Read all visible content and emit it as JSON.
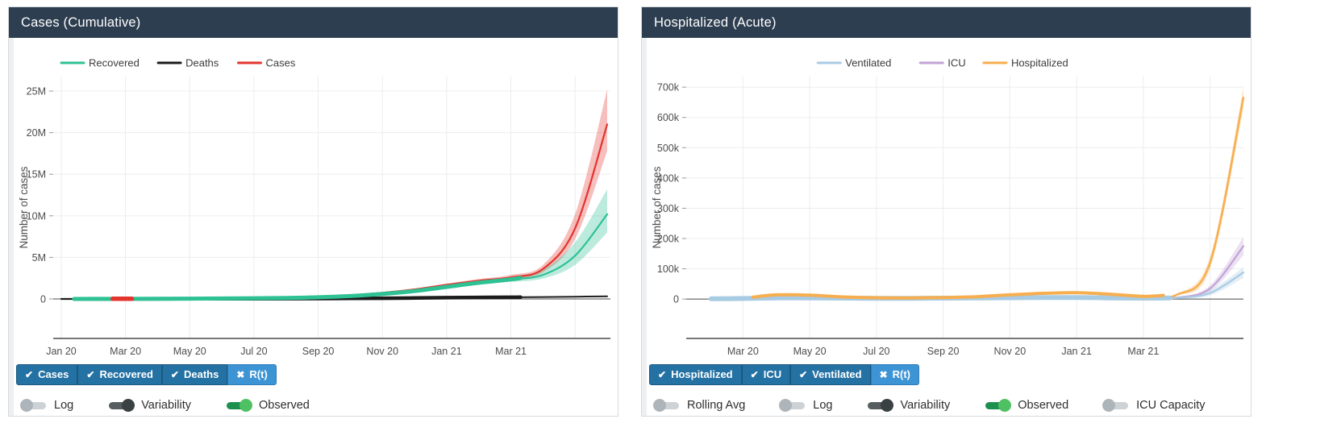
{
  "icons": {
    "checked": "✔",
    "unchecked": "✖"
  },
  "colors": {
    "header_bg": "#2d3e50",
    "button_on": "#2471a3",
    "button_off": "#3d94d4",
    "cases": "#e3342e",
    "recovered": "#2ec194",
    "deaths": "#1c1c1c",
    "ventilated": "#a8cbe4",
    "icu": "#c2a3d6",
    "hospitalized": "#f7ae4f"
  },
  "panels": [
    {
      "title": "Cases (Cumulative)",
      "toggle_buttons": [
        {
          "label": "Cases",
          "checked": true
        },
        {
          "label": "Recovered",
          "checked": true
        },
        {
          "label": "Deaths",
          "checked": true
        },
        {
          "label": "R(t)",
          "checked": false
        }
      ],
      "switches": [
        {
          "label": "Log",
          "on": false,
          "style": "gray"
        },
        {
          "label": "Variability",
          "on": true,
          "style": "dark"
        },
        {
          "label": "Observed",
          "on": true,
          "style": "green"
        }
      ]
    },
    {
      "title": "Hospitalized (Acute)",
      "toggle_buttons": [
        {
          "label": "Hospitalized",
          "checked": true
        },
        {
          "label": "ICU",
          "checked": true
        },
        {
          "label": "Ventilated",
          "checked": true
        },
        {
          "label": "R(t)",
          "checked": false
        }
      ],
      "switches": [
        {
          "label": "Rolling Avg",
          "on": false,
          "style": "gray"
        },
        {
          "label": "Log",
          "on": false,
          "style": "gray"
        },
        {
          "label": "Variability",
          "on": true,
          "style": "dark"
        },
        {
          "label": "Observed",
          "on": true,
          "style": "green"
        },
        {
          "label": "ICU Capacity",
          "on": false,
          "style": "gray"
        }
      ]
    }
  ],
  "chart_data": [
    {
      "type": "line",
      "title": "Cases (Cumulative)",
      "xlabel": "",
      "ylabel": "Number of cases",
      "x_unit": "months since Jan 2020",
      "y_unit": "millions of cases",
      "grid": true,
      "legend_pos": "top-left",
      "xlim": [
        -0.25,
        17.1
      ],
      "ylim": [
        -4.75,
        26.75
      ],
      "xticks": [
        {
          "v": 0,
          "label": "Jan 20"
        },
        {
          "v": 2,
          "label": "Mar 20"
        },
        {
          "v": 4,
          "label": "May 20"
        },
        {
          "v": 6,
          "label": "Jul 20"
        },
        {
          "v": 8,
          "label": "Sep 20"
        },
        {
          "v": 10,
          "label": "Nov 20"
        },
        {
          "v": 12,
          "label": "Jan 21"
        },
        {
          "v": 14,
          "label": "Mar 21"
        },
        {
          "v": 16,
          "label": ""
        }
      ],
      "yticks": [
        {
          "v": 0,
          "label": "0"
        },
        {
          "v": 5,
          "label": "5M"
        },
        {
          "v": 10,
          "label": "10M"
        },
        {
          "v": 15,
          "label": "15M"
        },
        {
          "v": 20,
          "label": "20M"
        },
        {
          "v": 25,
          "label": "25M"
        }
      ],
      "x": [
        0,
        1,
        2,
        3,
        4,
        5,
        6,
        7,
        8,
        9,
        10,
        11,
        12,
        13,
        14,
        15,
        16,
        17
      ],
      "series": [
        {
          "name": "Cases",
          "color": "#e3342e",
          "width": 2.2,
          "y": [
            0,
            0.01,
            0.02,
            0.03,
            0.05,
            0.07,
            0.1,
            0.15,
            0.25,
            0.45,
            0.75,
            1.15,
            1.7,
            2.2,
            2.6,
            3.6,
            8.5,
            21.0
          ],
          "band_high": [
            0,
            0.01,
            0.02,
            0.03,
            0.05,
            0.07,
            0.1,
            0.15,
            0.27,
            0.49,
            0.82,
            1.26,
            1.85,
            2.4,
            2.9,
            4.1,
            10.2,
            25.2
          ],
          "band_low": [
            0,
            0.01,
            0.02,
            0.03,
            0.05,
            0.07,
            0.1,
            0.15,
            0.23,
            0.41,
            0.68,
            1.05,
            1.55,
            2.0,
            2.35,
            3.2,
            7.2,
            17.8
          ],
          "thick_range": [
            1.6,
            2.2
          ],
          "thick_width": 5.5
        },
        {
          "name": "Recovered",
          "color": "#2ec194",
          "width": 2.2,
          "y": [
            0,
            0.005,
            0.01,
            0.02,
            0.04,
            0.06,
            0.09,
            0.13,
            0.2,
            0.35,
            0.6,
            0.95,
            1.45,
            1.95,
            2.35,
            2.9,
            5.2,
            10.2
          ],
          "band_high": [
            0,
            0.005,
            0.01,
            0.02,
            0.05,
            0.08,
            0.12,
            0.17,
            0.26,
            0.44,
            0.73,
            1.12,
            1.66,
            2.22,
            2.7,
            3.55,
            6.8,
            13.2
          ],
          "band_low": [
            0,
            0.005,
            0.01,
            0.02,
            0.03,
            0.05,
            0.07,
            0.1,
            0.16,
            0.28,
            0.5,
            0.8,
            1.26,
            1.7,
            2.05,
            2.45,
            4.1,
            8.0
          ],
          "thick_range": [
            0.4,
            14.3
          ],
          "thick_width": 5
        },
        {
          "name": "Deaths",
          "color": "#1c1c1c",
          "width": 2,
          "y": [
            0,
            0,
            0.005,
            0.01,
            0.015,
            0.02,
            0.03,
            0.04,
            0.05,
            0.07,
            0.09,
            0.12,
            0.15,
            0.18,
            0.2,
            0.23,
            0.27,
            0.32
          ],
          "thick_range": [
            0.5,
            14.3
          ],
          "thick_width": 4.5
        }
      ],
      "legend": [
        {
          "label": "Recovered",
          "color": "#2ec194"
        },
        {
          "label": "Deaths",
          "color": "#1c1c1c"
        },
        {
          "label": "Cases",
          "color": "#e3342e"
        }
      ]
    },
    {
      "type": "line",
      "title": "Hospitalized (Acute)",
      "xlabel": "",
      "ylabel": "Number of cases",
      "x_unit": "months since Jan 2020",
      "y_unit": "thousands of cases",
      "grid": true,
      "legend_pos": "center",
      "xlim": [
        0.3,
        17.0
      ],
      "ylim": [
        -130,
        735
      ],
      "xticks": [
        {
          "v": 2,
          "label": "Mar 20"
        },
        {
          "v": 4,
          "label": "May 20"
        },
        {
          "v": 6,
          "label": "Jul 20"
        },
        {
          "v": 8,
          "label": "Sep 20"
        },
        {
          "v": 10,
          "label": "Nov 20"
        },
        {
          "v": 12,
          "label": "Jan 21"
        },
        {
          "v": 14,
          "label": "Mar 21"
        },
        {
          "v": 16,
          "label": ""
        }
      ],
      "yticks": [
        {
          "v": 0,
          "label": "0"
        },
        {
          "v": 100,
          "label": "100k"
        },
        {
          "v": 200,
          "label": "200k"
        },
        {
          "v": 300,
          "label": "300k"
        },
        {
          "v": 400,
          "label": "400k"
        },
        {
          "v": 500,
          "label": "500k"
        },
        {
          "v": 600,
          "label": "600k"
        },
        {
          "v": 700,
          "label": "700k"
        }
      ],
      "x": [
        1,
        2,
        3,
        4,
        5,
        6,
        7,
        8,
        9,
        10,
        11,
        12,
        13,
        14,
        15,
        16,
        17
      ],
      "series": [
        {
          "name": "Hospitalized",
          "color": "#f7ae4f",
          "width": 2.5,
          "y": [
            0,
            3,
            14,
            13,
            7,
            4.5,
            4,
            5,
            8,
            14,
            19,
            21,
            16,
            9,
            14,
            120,
            665
          ],
          "band_high": [
            0,
            4,
            17,
            16,
            9,
            6,
            5.5,
            6.5,
            10,
            17,
            22,
            24,
            19,
            11,
            17,
            140,
            700
          ],
          "band_low": [
            0,
            2,
            11,
            10,
            5,
            3,
            3,
            3.5,
            6,
            11,
            16,
            18,
            13,
            7,
            11,
            100,
            630
          ],
          "thick_range": [
            2.3,
            14.6
          ],
          "thick_width": 4
        },
        {
          "name": "ICU",
          "color": "#c2a3d6",
          "width": 2.2,
          "y": [
            0,
            1.5,
            5,
            4.5,
            2.5,
            2,
            2,
            2.5,
            3.5,
            5,
            6.5,
            7,
            5.5,
            3.5,
            5,
            35,
            175
          ],
          "band_high": [
            0,
            2,
            6.5,
            6,
            3.5,
            3,
            3,
            3.5,
            5,
            6.5,
            8.5,
            9,
            7,
            5,
            7,
            45,
            205
          ],
          "band_low": [
            0,
            1,
            3.5,
            3,
            1.5,
            1,
            1,
            1.5,
            2,
            3.5,
            4.5,
            5,
            4,
            2,
            3,
            25,
            145
          ]
        },
        {
          "name": "Ventilated",
          "color": "#a8cbe4",
          "width": 2.2,
          "y": [
            1,
            2,
            4,
            4,
            3,
            2.5,
            2.5,
            3,
            3.5,
            4.5,
            5,
            5,
            4,
            3,
            4,
            20,
            88
          ],
          "band_high": [
            4,
            5,
            8,
            8,
            7,
            6.5,
            6.5,
            7,
            8,
            9,
            9.5,
            9.5,
            8.5,
            7,
            8,
            30,
            105
          ],
          "band_low": [
            0,
            0,
            0.5,
            0.5,
            0,
            0,
            0,
            0,
            0.5,
            1,
            1.5,
            1.5,
            0.5,
            0,
            0.5,
            12,
            70
          ],
          "thick_range": [
            1.05,
            14.8
          ],
          "thick_width": 6
        }
      ],
      "legend": [
        {
          "label": "Ventilated",
          "color": "#a8cbe4"
        },
        {
          "label": "ICU",
          "color": "#c2a3d6"
        },
        {
          "label": "Hospitalized",
          "color": "#f7ae4f"
        }
      ]
    }
  ]
}
